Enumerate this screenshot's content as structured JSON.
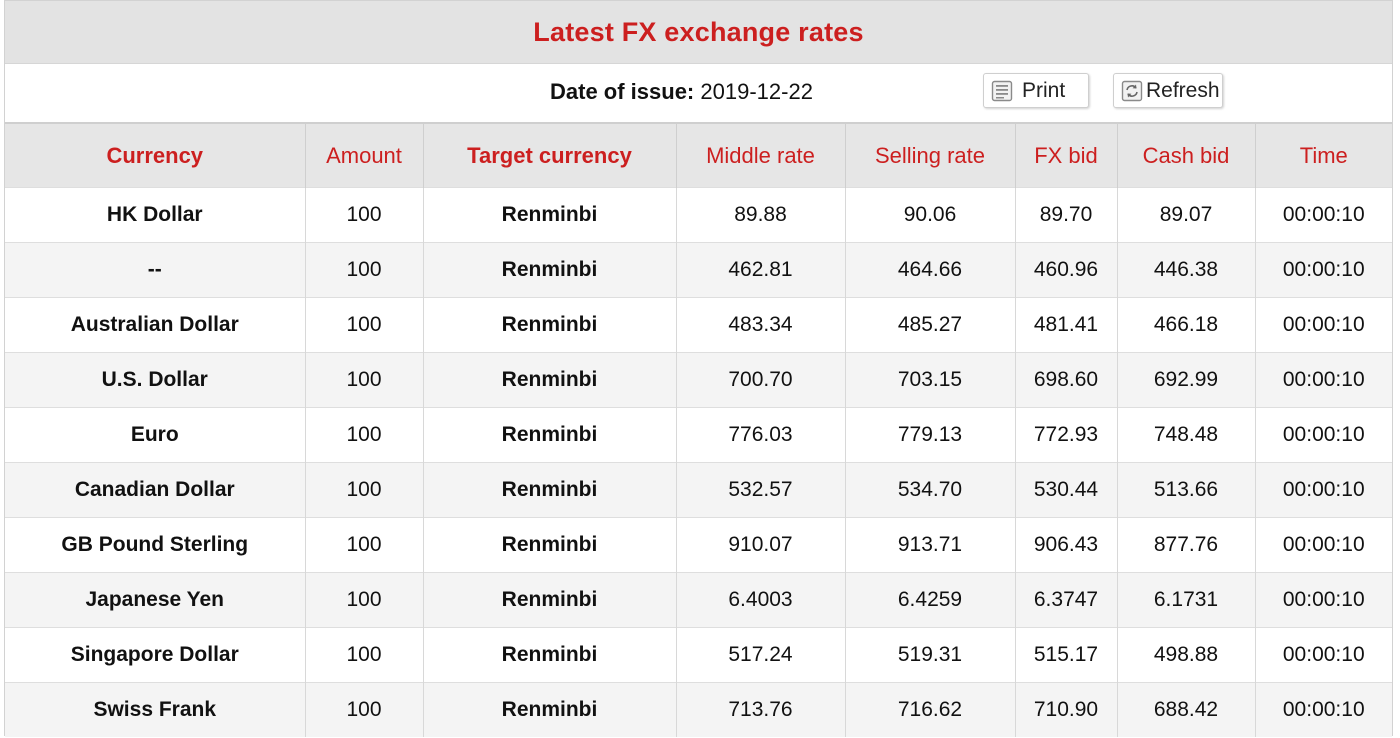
{
  "header": {
    "title": "Latest FX exchange rates",
    "issue_label": "Date of issue:",
    "issue_date": "2019-12-22",
    "print_label": "Print",
    "refresh_label": "Refresh"
  },
  "colors": {
    "accent": "#cc1f1f",
    "header_bg": "#e3e3e3",
    "row_alt_bg": "#f4f4f4"
  },
  "icons": {
    "print": "print-icon",
    "refresh": "refresh-icon"
  },
  "table": {
    "columns": [
      "Currency",
      "Amount",
      "Target currency",
      "Middle rate",
      "Selling rate",
      "FX bid",
      "Cash bid",
      "Time"
    ],
    "rows": [
      [
        "HK Dollar",
        "100",
        "Renminbi",
        "89.88",
        "90.06",
        "89.70",
        "89.07",
        "00:00:10"
      ],
      [
        "--",
        "100",
        "Renminbi",
        "462.81",
        "464.66",
        "460.96",
        "446.38",
        "00:00:10"
      ],
      [
        "Australian Dollar",
        "100",
        "Renminbi",
        "483.34",
        "485.27",
        "481.41",
        "466.18",
        "00:00:10"
      ],
      [
        "U.S. Dollar",
        "100",
        "Renminbi",
        "700.70",
        "703.15",
        "698.60",
        "692.99",
        "00:00:10"
      ],
      [
        "Euro",
        "100",
        "Renminbi",
        "776.03",
        "779.13",
        "772.93",
        "748.48",
        "00:00:10"
      ],
      [
        "Canadian Dollar",
        "100",
        "Renminbi",
        "532.57",
        "534.70",
        "530.44",
        "513.66",
        "00:00:10"
      ],
      [
        "GB Pound Sterling",
        "100",
        "Renminbi",
        "910.07",
        "913.71",
        "906.43",
        "877.76",
        "00:00:10"
      ],
      [
        "Japanese Yen",
        "100",
        "Renminbi",
        "6.4003",
        "6.4259",
        "6.3747",
        "6.1731",
        "00:00:10"
      ],
      [
        "Singapore Dollar",
        "100",
        "Renminbi",
        "517.24",
        "519.31",
        "515.17",
        "498.88",
        "00:00:10"
      ],
      [
        "Swiss Frank",
        "100",
        "Renminbi",
        "713.76",
        "716.62",
        "710.90",
        "688.42",
        "00:00:10"
      ]
    ]
  }
}
